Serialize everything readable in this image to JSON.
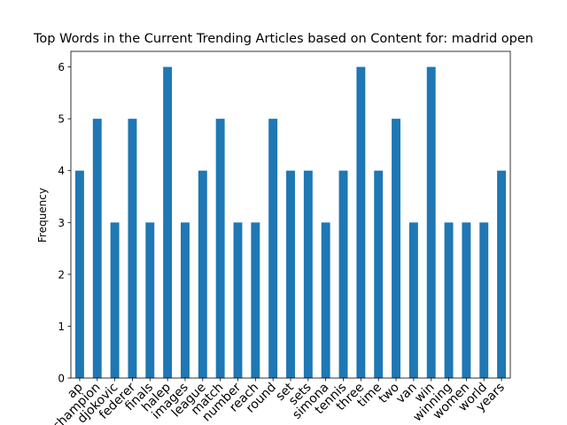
{
  "chart_data": {
    "type": "bar",
    "title": "Top Words in the Current Trending Articles based on Content for: madrid open",
    "xlabel": "",
    "ylabel": "Frequency",
    "categories": [
      "ap",
      "champion",
      "djokovic",
      "federer",
      "finals",
      "halep",
      "images",
      "league",
      "match",
      "number",
      "reach",
      "round",
      "set",
      "sets",
      "simona",
      "tennis",
      "three",
      "time",
      "two",
      "van",
      "win",
      "winning",
      "women",
      "world",
      "years"
    ],
    "values": [
      4,
      5,
      3,
      5,
      3,
      6,
      3,
      4,
      5,
      3,
      3,
      5,
      4,
      4,
      3,
      4,
      6,
      4,
      5,
      3,
      6,
      3,
      3,
      3,
      4
    ],
    "ylim": [
      0,
      6.3
    ],
    "yticks": [
      0,
      1,
      2,
      3,
      4,
      5,
      6
    ],
    "color": "#1f77b4",
    "grid": false,
    "legend": "none"
  }
}
